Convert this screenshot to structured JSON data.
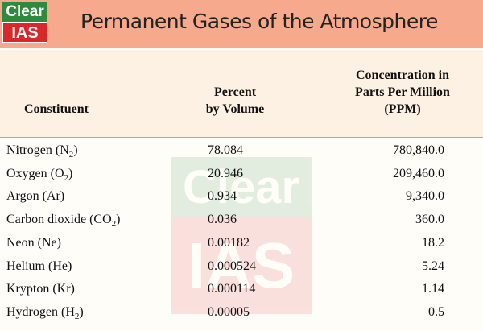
{
  "header": {
    "logo": {
      "top": "Clear",
      "bottom": "IAS"
    },
    "title": "Permanent Gases of the Atmosphere"
  },
  "table": {
    "columns": [
      {
        "lines": [
          "Constituent"
        ]
      },
      {
        "lines": [
          "Percent",
          "by Volume"
        ]
      },
      {
        "lines": [
          "Concentration in",
          "Parts Per Million",
          "(PPM)"
        ]
      }
    ],
    "rows": [
      [
        {
          "before": "Nitrogen (N",
          "sub": "2",
          "after": ")"
        },
        "78.084",
        "780,840.0"
      ],
      [
        {
          "before": "Oxygen (O",
          "sub": "2",
          "after": ")"
        },
        "20.946",
        "209,460.0"
      ],
      [
        {
          "before": "Argon (Ar)"
        },
        "0.934",
        "9,340.0"
      ],
      [
        {
          "before": "Carbon dioxide (CO",
          "sub": "2",
          "after": ")"
        },
        "0.036",
        "360.0"
      ],
      [
        {
          "before": "Neon (Ne)"
        },
        "0.00182",
        "18.2"
      ],
      [
        {
          "before": "Helium (He)"
        },
        "0.000524",
        "5.24"
      ],
      [
        {
          "before": "Krypton (Kr)"
        },
        "0.000114",
        "1.14"
      ],
      [
        {
          "before": "Hydrogen (H",
          "sub": "2",
          "after": ")"
        },
        "0.00005",
        "0.5"
      ]
    ]
  },
  "watermark": {
    "top": "Clear",
    "bottom": "IAS"
  }
}
